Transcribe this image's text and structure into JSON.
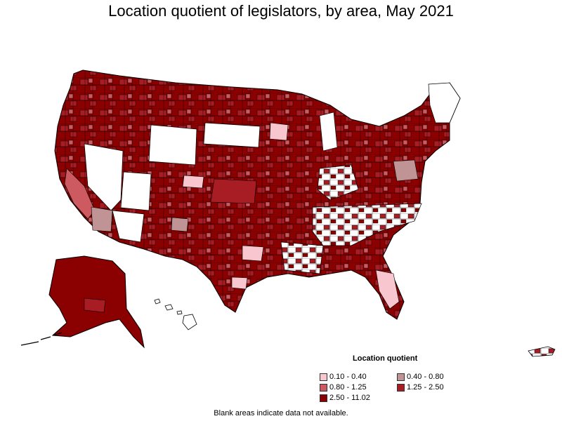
{
  "map": {
    "title": "Location quotient of legislators, by area, May 2021",
    "footnote": "Blank areas indicate data not available."
  },
  "legend": {
    "title": "Location quotient",
    "items": [
      {
        "label": "0.10 - 0.40",
        "color": "#f7c6cf"
      },
      {
        "label": "0.40 - 0.80",
        "color": "#c09494"
      },
      {
        "label": "0.80 - 1.25",
        "color": "#cc5a60"
      },
      {
        "label": "1.25 - 2.50",
        "color": "#a81c24"
      },
      {
        "label": "2.50 - 11.02",
        "color": "#8b0000"
      }
    ]
  },
  "colors": {
    "blank": "#ffffff",
    "border": "#000000"
  }
}
